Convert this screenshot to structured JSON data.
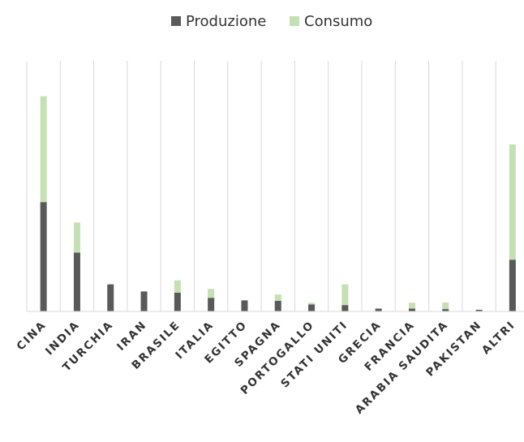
{
  "chart_data": {
    "type": "bar",
    "stacked": true,
    "categories": [
      "CINA",
      "INDIA",
      "TURCHIA",
      "IRAN",
      "BRASILE",
      "ITALIA",
      "EGITTO",
      "SPAGNA",
      "PORTOGALLO",
      "STATI UNITI",
      "GRECIA",
      "FRANCIA",
      "ARABIA SAUDITA",
      "PAKISTAN",
      "ALTRI"
    ],
    "series": [
      {
        "name": "Produzione",
        "color": "#595959",
        "values": [
          46.5,
          25.0,
          11.5,
          8.5,
          8.0,
          5.8,
          4.7,
          4.5,
          3.0,
          2.7,
          1.2,
          1.2,
          1.0,
          0.7,
          22.0
        ]
      },
      {
        "name": "Consumo",
        "color": "#c5e0b4",
        "values": [
          45.0,
          12.8,
          0,
          0,
          5.2,
          3.8,
          0,
          2.7,
          0.7,
          8.8,
          0,
          2.5,
          2.8,
          0,
          49.0
        ]
      }
    ],
    "legend_position": "top",
    "ylim": [
      0,
      100
    ],
    "grid": "vertical"
  }
}
